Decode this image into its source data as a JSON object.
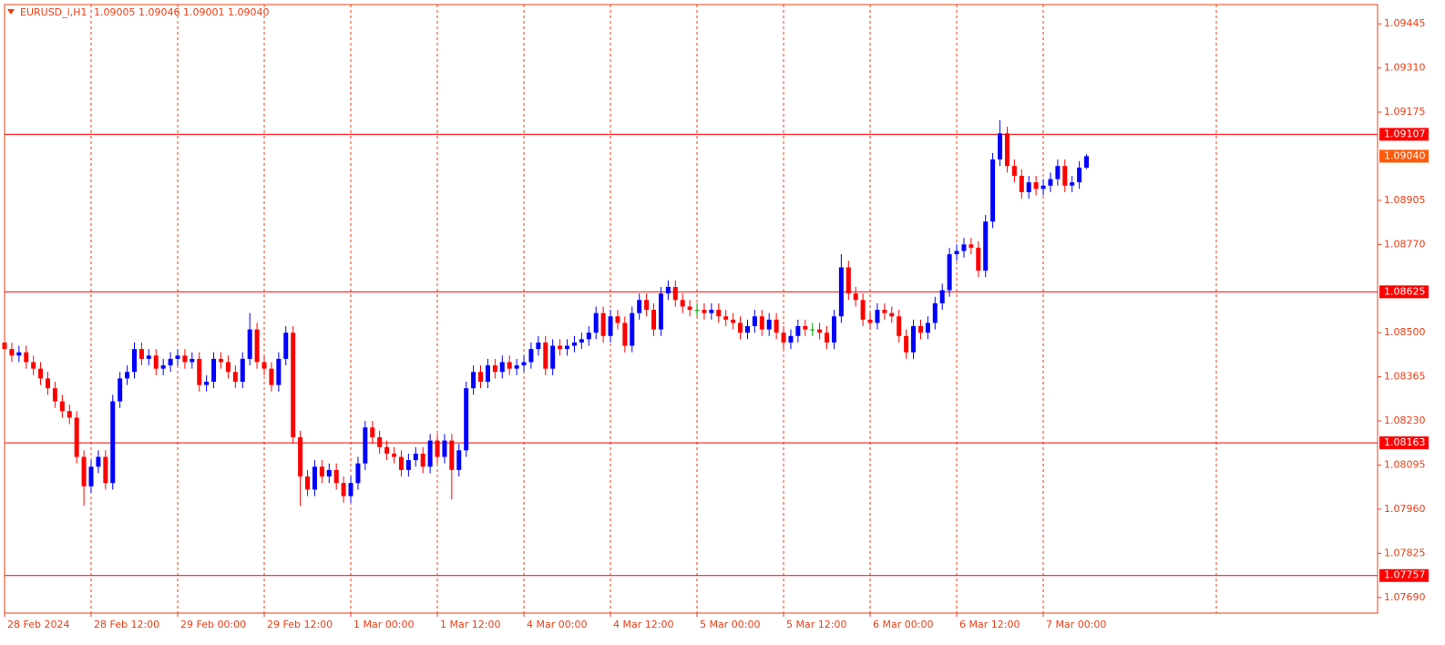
{
  "chart_data": {
    "type": "candlestick",
    "title": "EURUSD_i,H1",
    "header_prices": "1.09005 1.09046 1.09001 1.09040",
    "up_color": "#0000ff",
    "down_color": "#ff0000",
    "axis_color": "#f03c14",
    "ylim": [
      1.07642,
      1.09504
    ],
    "yticks": [
      {
        "value": 1.09445,
        "label": "1.09445"
      },
      {
        "value": 1.0931,
        "label": "1.09310"
      },
      {
        "value": 1.09175,
        "label": "1.09175"
      },
      {
        "value": 1.08905,
        "label": "1.08905"
      },
      {
        "value": 1.0877,
        "label": "1.08770"
      },
      {
        "value": 1.085,
        "label": "1.08500"
      },
      {
        "value": 1.08365,
        "label": "1.08365"
      },
      {
        "value": 1.0823,
        "label": "1.08230"
      },
      {
        "value": 1.08095,
        "label": "1.08095"
      },
      {
        "value": 1.0796,
        "label": "1.07960"
      },
      {
        "value": 1.07825,
        "label": "1.07825"
      },
      {
        "value": 1.0769,
        "label": "1.07690"
      }
    ],
    "xticks": [
      {
        "value": 0,
        "label": "28 Feb 2024"
      },
      {
        "value": 12,
        "label": "28 Feb 12:00"
      },
      {
        "value": 24,
        "label": "29 Feb 00:00"
      },
      {
        "value": 36,
        "label": "29 Feb 12:00"
      },
      {
        "value": 48,
        "label": "1 Mar 00:00"
      },
      {
        "value": 60,
        "label": "1 Mar 12:00"
      },
      {
        "value": 72,
        "label": "4 Mar 00:00"
      },
      {
        "value": 84,
        "label": "4 Mar 12:00"
      },
      {
        "value": 96,
        "label": "5 Mar 00:00"
      },
      {
        "value": 108,
        "label": "5 Mar 12:00"
      },
      {
        "value": 120,
        "label": "6 Mar 00:00"
      },
      {
        "value": 132,
        "label": "6 Mar 12:00"
      },
      {
        "value": 144,
        "label": "7 Mar 00:00"
      }
    ],
    "levels": [
      1.09107,
      1.08625,
      1.08163,
      1.07757
    ],
    "level_color": "#ff0000",
    "last_price": {
      "value": 1.0904,
      "label": "1.09040"
    },
    "last_price_color": "#ff5a0a",
    "open": [
      1.0847,
      1.0845,
      1.0843,
      1.0844,
      1.0841,
      1.0839,
      1.0836,
      1.0833,
      1.0829,
      1.0826,
      1.0824,
      1.0812,
      1.0803,
      1.0809,
      1.0812,
      1.0804,
      1.0829,
      1.0836,
      1.0838,
      1.0845,
      1.0842,
      1.0843,
      1.0839,
      1.084,
      1.0842,
      1.0843,
      1.0841,
      1.0842,
      1.0834,
      1.0835,
      1.0842,
      1.0841,
      1.0838,
      1.0835,
      1.0842,
      1.0851,
      1.0841,
      1.0839,
      1.0834,
      1.0842,
      1.085,
      1.0818,
      1.0806,
      1.0802,
      1.0809,
      1.0806,
      1.0808,
      1.0804,
      1.08,
      1.0804,
      1.081,
      1.0821,
      1.0818,
      1.0815,
      1.0813,
      1.0812,
      1.0808,
      1.0811,
      1.0813,
      1.0809,
      1.0817,
      1.0812,
      1.0817,
      1.0808,
      1.0814,
      1.0833,
      1.0838,
      1.0835,
      1.084,
      1.0838,
      1.0841,
      1.0839,
      1.084,
      1.0841,
      1.0845,
      1.0847,
      1.0839,
      1.0846,
      1.0845,
      1.0846,
      1.0847,
      1.0848,
      1.085,
      1.0856,
      1.0849,
      1.0855,
      1.0853,
      1.0846,
      1.0856,
      1.086,
      1.0857,
      1.0851,
      1.0862,
      1.0864,
      1.086,
      1.0858,
      1.0857,
      1.0857,
      1.0856,
      1.0857,
      1.0855,
      1.0854,
      1.0853,
      1.085,
      1.0852,
      1.0855,
      1.0851,
      1.0854,
      1.085,
      1.0847,
      1.0849,
      1.0852,
      1.0851,
      1.0851,
      1.085,
      1.0847,
      1.0855,
      1.087,
      1.0862,
      1.086,
      1.0854,
      1.0853,
      1.0857,
      1.0856,
      1.0855,
      1.0849,
      1.0844,
      1.0852,
      1.085,
      1.0853,
      1.0859,
      1.0863,
      1.0874,
      1.0875,
      1.0877,
      1.0876,
      1.0869,
      1.0884,
      1.0903,
      1.0911,
      1.0901,
      1.0898,
      1.0893,
      1.0896,
      1.0894,
      1.0895,
      1.0897,
      1.0901,
      1.0895,
      1.0896,
      1.09005
    ],
    "high": [
      1.0849,
      1.0847,
      1.0846,
      1.0846,
      1.0843,
      1.0841,
      1.0838,
      1.0835,
      1.0831,
      1.0828,
      1.0826,
      1.0814,
      1.0811,
      1.0814,
      1.0814,
      1.0831,
      1.0838,
      1.084,
      1.0847,
      1.0847,
      1.0845,
      1.0845,
      1.0842,
      1.0844,
      1.0845,
      1.0845,
      1.0844,
      1.0844,
      1.0837,
      1.0844,
      1.0844,
      1.0843,
      1.084,
      1.0844,
      1.0856,
      1.0853,
      1.0843,
      1.0841,
      1.0844,
      1.0852,
      1.0852,
      1.082,
      1.0808,
      1.0811,
      1.0811,
      1.081,
      1.081,
      1.0806,
      1.0806,
      1.0812,
      1.0823,
      1.0823,
      1.082,
      1.0817,
      1.0815,
      1.0814,
      1.0813,
      1.0815,
      1.0815,
      1.0819,
      1.0819,
      1.0819,
      1.0819,
      1.0816,
      1.0835,
      1.084,
      1.084,
      1.0842,
      1.0842,
      1.0843,
      1.0843,
      1.0842,
      1.0843,
      1.0847,
      1.0849,
      1.0849,
      1.0848,
      1.0848,
      1.0848,
      1.0849,
      1.085,
      1.0852,
      1.0858,
      1.0858,
      1.0857,
      1.0857,
      1.0855,
      1.0858,
      1.0862,
      1.0862,
      1.0859,
      1.0864,
      1.0866,
      1.0866,
      1.0862,
      1.086,
      1.0859,
      1.0859,
      1.0859,
      1.0859,
      1.0857,
      1.0856,
      1.0855,
      1.0854,
      1.0857,
      1.0857,
      1.0856,
      1.0856,
      1.0852,
      1.0851,
      1.0854,
      1.0854,
      1.0853,
      1.0853,
      1.0852,
      1.0857,
      1.0874,
      1.0872,
      1.0864,
      1.0862,
      1.0856,
      1.0859,
      1.0859,
      1.0858,
      1.0857,
      1.0851,
      1.0854,
      1.0854,
      1.0855,
      1.0861,
      1.0865,
      1.0876,
      1.0877,
      1.0879,
      1.0879,
      1.0878,
      1.0886,
      1.0905,
      1.0915,
      1.0913,
      1.0903,
      1.09,
      1.0898,
      1.0898,
      1.0897,
      1.0899,
      1.0903,
      1.0903,
      1.0898,
      1.09025,
      1.09046
    ],
    "low": [
      1.0843,
      1.0841,
      1.0841,
      1.0839,
      1.0837,
      1.0834,
      1.0831,
      1.0827,
      1.0824,
      1.0822,
      1.081,
      1.0797,
      1.0801,
      1.0807,
      1.0802,
      1.0802,
      1.0827,
      1.0834,
      1.0836,
      1.084,
      1.084,
      1.0837,
      1.0837,
      1.0838,
      1.084,
      1.0839,
      1.0839,
      1.0832,
      1.0832,
      1.0833,
      1.0839,
      1.0836,
      1.0833,
      1.0833,
      1.084,
      1.0839,
      1.0837,
      1.0832,
      1.0832,
      1.084,
      1.0816,
      1.0797,
      1.08,
      1.08,
      1.0804,
      1.0804,
      1.0802,
      1.0798,
      1.0798,
      1.0802,
      1.0808,
      1.0816,
      1.0813,
      1.0811,
      1.081,
      1.0806,
      1.0806,
      1.0809,
      1.0807,
      1.0807,
      1.081,
      1.081,
      1.0799,
      1.0806,
      1.0812,
      1.0831,
      1.0833,
      1.0833,
      1.0836,
      1.0836,
      1.0837,
      1.0837,
      1.0838,
      1.0839,
      1.0843,
      1.0837,
      1.0837,
      1.0843,
      1.0843,
      1.0844,
      1.0845,
      1.0846,
      1.0848,
      1.0847,
      1.0847,
      1.0851,
      1.0844,
      1.0844,
      1.0854,
      1.0855,
      1.0849,
      1.0849,
      1.086,
      1.0858,
      1.0856,
      1.0855,
      1.0855,
      1.0854,
      1.0854,
      1.0853,
      1.0852,
      1.0851,
      1.0848,
      1.0848,
      1.085,
      1.0849,
      1.0849,
      1.0848,
      1.0845,
      1.0845,
      1.0847,
      1.0849,
      1.0849,
      1.0848,
      1.0845,
      1.0845,
      1.0853,
      1.086,
      1.0858,
      1.0852,
      1.0851,
      1.0851,
      1.0854,
      1.0853,
      1.0847,
      1.0842,
      1.0842,
      1.0848,
      1.0848,
      1.0851,
      1.0857,
      1.0861,
      1.0872,
      1.0873,
      1.0874,
      1.0867,
      1.0867,
      1.0882,
      1.0901,
      1.0899,
      1.0896,
      1.0891,
      1.0891,
      1.0892,
      1.0892,
      1.0893,
      1.0895,
      1.0893,
      1.0893,
      1.0894,
      1.09001
    ],
    "close": [
      1.0845,
      1.0843,
      1.0844,
      1.0841,
      1.0839,
      1.0836,
      1.0833,
      1.0829,
      1.0826,
      1.0824,
      1.0812,
      1.0803,
      1.0809,
      1.0812,
      1.0804,
      1.0829,
      1.0836,
      1.0838,
      1.0845,
      1.0842,
      1.0843,
      1.0839,
      1.084,
      1.0842,
      1.0843,
      1.0841,
      1.0842,
      1.0834,
      1.0835,
      1.0842,
      1.0841,
      1.0838,
      1.0835,
      1.0842,
      1.0851,
      1.0841,
      1.0839,
      1.0834,
      1.0842,
      1.085,
      1.0818,
      1.0806,
      1.0802,
      1.0809,
      1.0806,
      1.0808,
      1.0804,
      1.08,
      1.0804,
      1.081,
      1.0821,
      1.0818,
      1.0815,
      1.0813,
      1.0812,
      1.0808,
      1.0811,
      1.0813,
      1.0809,
      1.0817,
      1.0812,
      1.0817,
      1.0808,
      1.0814,
      1.0833,
      1.0838,
      1.0835,
      1.084,
      1.0838,
      1.0841,
      1.0839,
      1.084,
      1.0841,
      1.0845,
      1.0847,
      1.0839,
      1.0846,
      1.0845,
      1.0846,
      1.0847,
      1.0848,
      1.085,
      1.0856,
      1.0849,
      1.0855,
      1.0853,
      1.0846,
      1.0856,
      1.086,
      1.0857,
      1.0851,
      1.0862,
      1.0864,
      1.086,
      1.0858,
      1.0857,
      1.0857,
      1.0856,
      1.0857,
      1.0855,
      1.0854,
      1.0853,
      1.085,
      1.0852,
      1.0855,
      1.0851,
      1.0854,
      1.085,
      1.0847,
      1.0849,
      1.0852,
      1.0851,
      1.0851,
      1.085,
      1.0847,
      1.0855,
      1.087,
      1.0862,
      1.086,
      1.0854,
      1.0853,
      1.0857,
      1.0856,
      1.0855,
      1.0849,
      1.0844,
      1.0852,
      1.085,
      1.0853,
      1.0859,
      1.0863,
      1.0874,
      1.0875,
      1.0877,
      1.0876,
      1.0869,
      1.0884,
      1.0903,
      1.0911,
      1.0901,
      1.0898,
      1.0893,
      1.0896,
      1.0894,
      1.0895,
      1.0897,
      1.0901,
      1.0895,
      1.0896,
      1.09005,
      1.0904
    ]
  }
}
